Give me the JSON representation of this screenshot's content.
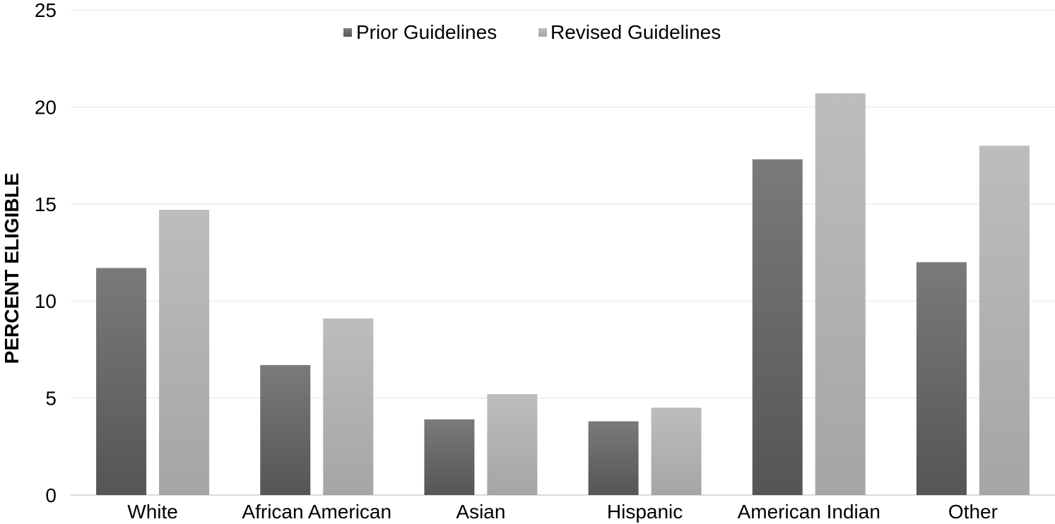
{
  "chart_data": {
    "type": "bar",
    "title": "",
    "xlabel": "",
    "ylabel": "PERCENT ELIGIBLE",
    "ylim": [
      0,
      25
    ],
    "yticks": [
      "0",
      "5",
      "10",
      "15",
      "20",
      "25"
    ],
    "grid": true,
    "legend_position": "top-center",
    "categories": [
      "White",
      "African American",
      "Asian",
      "Hispanic",
      "American Indian",
      "Other"
    ],
    "series": [
      {
        "name": "Prior Guidelines",
        "values": [
          11.7,
          6.7,
          3.9,
          3.8,
          17.3,
          12.0
        ],
        "color_top": "#7a7a7a",
        "color_bottom": "#555555"
      },
      {
        "name": "Revised Guidelines",
        "values": [
          14.7,
          9.1,
          5.2,
          4.5,
          20.7,
          18.0
        ],
        "color_top": "#bdbdbd",
        "color_bottom": "#a5a5a5"
      }
    ]
  }
}
